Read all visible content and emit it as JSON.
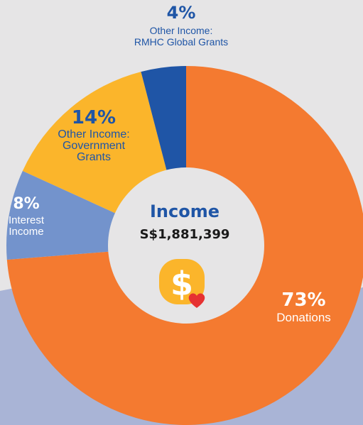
{
  "chart_data": {
    "type": "donut",
    "title": "Income",
    "total_label": "S$1,881,399",
    "slices": [
      {
        "key": "donations",
        "label": "Donations",
        "percent_label": "73%",
        "value": 73,
        "color": "#f47a30"
      },
      {
        "key": "interest",
        "label": "Interest Income",
        "label_lines": [
          "Interest",
          "Income"
        ],
        "percent_label": "8%",
        "value": 8,
        "color": "#7393cc"
      },
      {
        "key": "gov",
        "label": "Other Income: Government Grants",
        "label_lines": [
          "Other Income:",
          "Government",
          "Grants"
        ],
        "percent_label": "14%",
        "value": 14,
        "color": "#fbb52b"
      },
      {
        "key": "rmhc",
        "label": "Other Income: RMHC Global Grants",
        "label_lines": [
          "Other Income:",
          "RMHC Global Grants"
        ],
        "percent_label": "4%",
        "value": 4,
        "color": "#1f55a6"
      }
    ]
  },
  "colors": {
    "page_background": "#e6e5e6",
    "background_band": "#a9b4d6",
    "hole": "#e6e5e6",
    "icon_coin": "#fbb52b",
    "icon_heart": "#e63232"
  },
  "icons": {
    "center": "money-heart-icon"
  }
}
